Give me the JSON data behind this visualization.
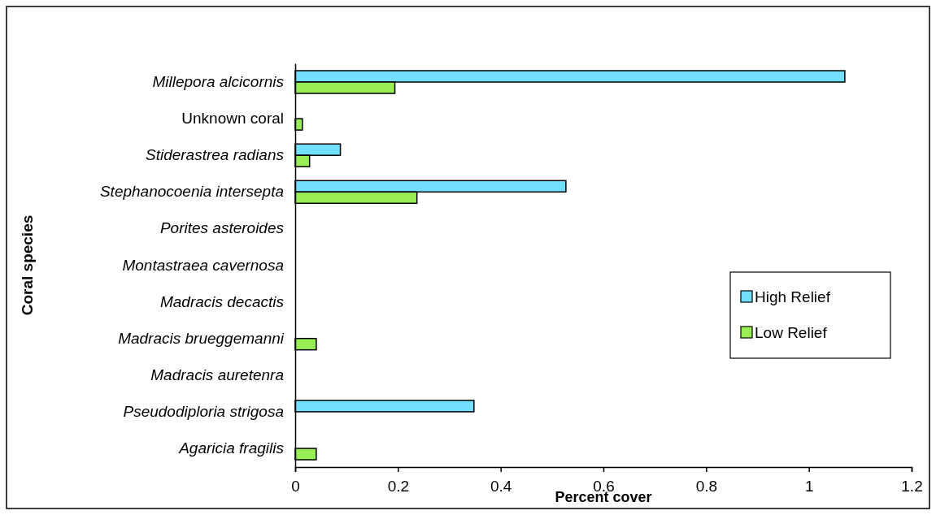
{
  "chart_data": {
    "type": "bar",
    "orientation": "horizontal",
    "xlabel": "Percent cover",
    "ylabel": "Coral species",
    "categories": [
      "Millepora alcicornis",
      "Unknown coral",
      "Stiderastrea radians",
      "Stephanocoenia intersepta",
      "Porites asteroides",
      "Montastraea cavernosa",
      "Madracis decactis",
      "Madracis brueggemanni",
      "Madracis auretenra",
      "Pseudodiploria strigosa",
      "Agaricia fragilis"
    ],
    "series": [
      {
        "name": "High Relief",
        "color": "#73dfff",
        "values": [
          1.07,
          null,
          0.088,
          0.527,
          null,
          null,
          null,
          null,
          null,
          0.348,
          null
        ]
      },
      {
        "name": "Low Relief",
        "color": "#99ee55",
        "values": [
          0.194,
          0.014,
          0.028,
          0.237,
          null,
          null,
          null,
          0.041,
          null,
          null,
          0.041
        ]
      }
    ],
    "xlim": [
      0,
      1.2
    ],
    "xticks": [
      0,
      0.2,
      0.4,
      0.6,
      0.8,
      1,
      1.2
    ],
    "grid": false,
    "legend": "right"
  }
}
